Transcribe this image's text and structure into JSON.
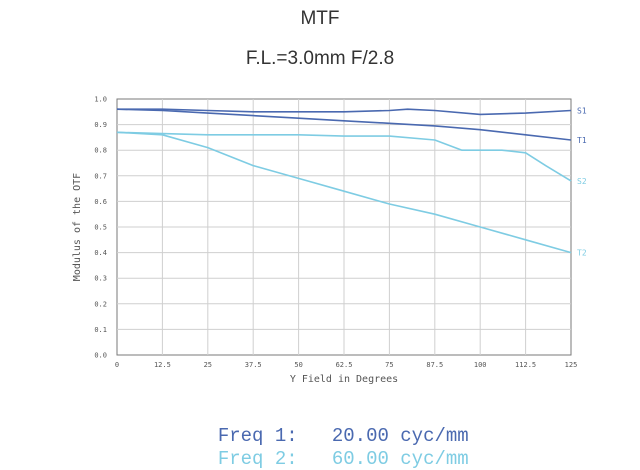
{
  "title": "MTF",
  "subtitle": "F.L.=3.0mm   F/2.8",
  "chart_data": {
    "type": "line",
    "xlabel": "Y Field in Degrees",
    "ylabel": "Modulus of the OTF",
    "xlim": [
      0,
      125
    ],
    "ylim": [
      0,
      1.0
    ],
    "x_ticks": [
      "0",
      "12.5",
      "25",
      "37.5",
      "50",
      "62.5",
      "75",
      "87.5",
      "100",
      "112.5",
      "125"
    ],
    "y_ticks": [
      "0.0",
      "0.1",
      "0.2",
      "0.3",
      "0.4",
      "0.5",
      "0.6",
      "0.7",
      "0.8",
      "0.9",
      "1.0"
    ],
    "grid": true,
    "series": [
      {
        "name": "S1",
        "color": "#4a69b0",
        "x": [
          0,
          12.5,
          25,
          37.5,
          50,
          62.5,
          75,
          80,
          87.5,
          100,
          112.5,
          125
        ],
        "y": [
          0.96,
          0.96,
          0.955,
          0.95,
          0.95,
          0.95,
          0.955,
          0.96,
          0.955,
          0.94,
          0.945,
          0.955
        ]
      },
      {
        "name": "T1",
        "color": "#4a69b0",
        "x": [
          0,
          12.5,
          25,
          37.5,
          50,
          62.5,
          75,
          87.5,
          100,
          112.5,
          125
        ],
        "y": [
          0.96,
          0.955,
          0.945,
          0.935,
          0.925,
          0.915,
          0.905,
          0.895,
          0.88,
          0.86,
          0.84
        ]
      },
      {
        "name": "S2",
        "color": "#7ecce3",
        "x": [
          0,
          12.5,
          25,
          37.5,
          50,
          62.5,
          75,
          87.5,
          95,
          100,
          106,
          112.5,
          118,
          125
        ],
        "y": [
          0.87,
          0.865,
          0.86,
          0.86,
          0.86,
          0.855,
          0.855,
          0.84,
          0.8,
          0.8,
          0.8,
          0.79,
          0.74,
          0.68
        ]
      },
      {
        "name": "T2",
        "color": "#7ecce3",
        "x": [
          0,
          12.5,
          25,
          37.5,
          50,
          62.5,
          75,
          87.5,
          100,
          112.5,
          125
        ],
        "y": [
          0.87,
          0.86,
          0.81,
          0.74,
          0.69,
          0.64,
          0.59,
          0.55,
          0.5,
          0.45,
          0.4
        ]
      }
    ]
  },
  "legend": {
    "freq1": {
      "label": "Freq 1:",
      "value": "20.00 cyc/mm",
      "color": "#4a69b0"
    },
    "freq2": {
      "label": "Freq 2:",
      "value": "60.00 cyc/mm",
      "color": "#7ecce3"
    }
  }
}
